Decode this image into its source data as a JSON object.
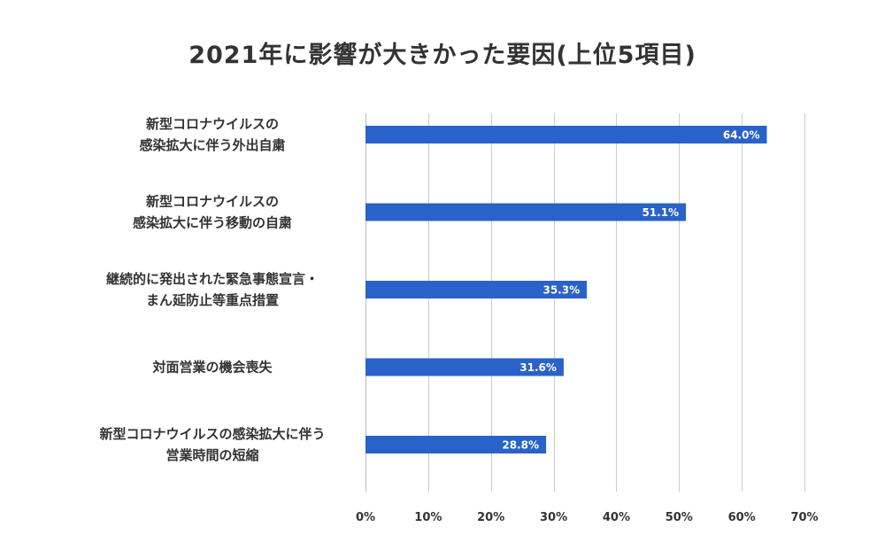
{
  "chart_data": {
    "type": "bar",
    "orientation": "horizontal",
    "title": "2021年に影響が大きかった要因(上位5項目)",
    "categories": [
      [
        "新型コロナウイルスの",
        "感染拡大に伴う外出自粛"
      ],
      [
        "新型コロナウイルスの",
        "感染拡大に伴う移動の自粛"
      ],
      [
        "継続的に発出された緊急事態宣言・",
        "まん延防止等重点措置"
      ],
      [
        "対面営業の機会喪失"
      ],
      [
        "新型コロナウイルスの感染拡大に伴う",
        "営業時間の短縮"
      ]
    ],
    "values": [
      64.0,
      51.1,
      35.3,
      31.6,
      28.8
    ],
    "value_labels": [
      "64.0%",
      "51.1%",
      "35.3%",
      "31.6%",
      "28.8%"
    ],
    "xlim": [
      0,
      70
    ],
    "xticks": [
      0,
      10,
      20,
      30,
      40,
      50,
      60,
      70
    ],
    "xtick_labels": [
      "0%",
      "10%",
      "20%",
      "30%",
      "40%",
      "50%",
      "60%",
      "70%"
    ],
    "xlabel": "",
    "ylabel": "",
    "grid": true,
    "bar_color": "#2962c9"
  }
}
